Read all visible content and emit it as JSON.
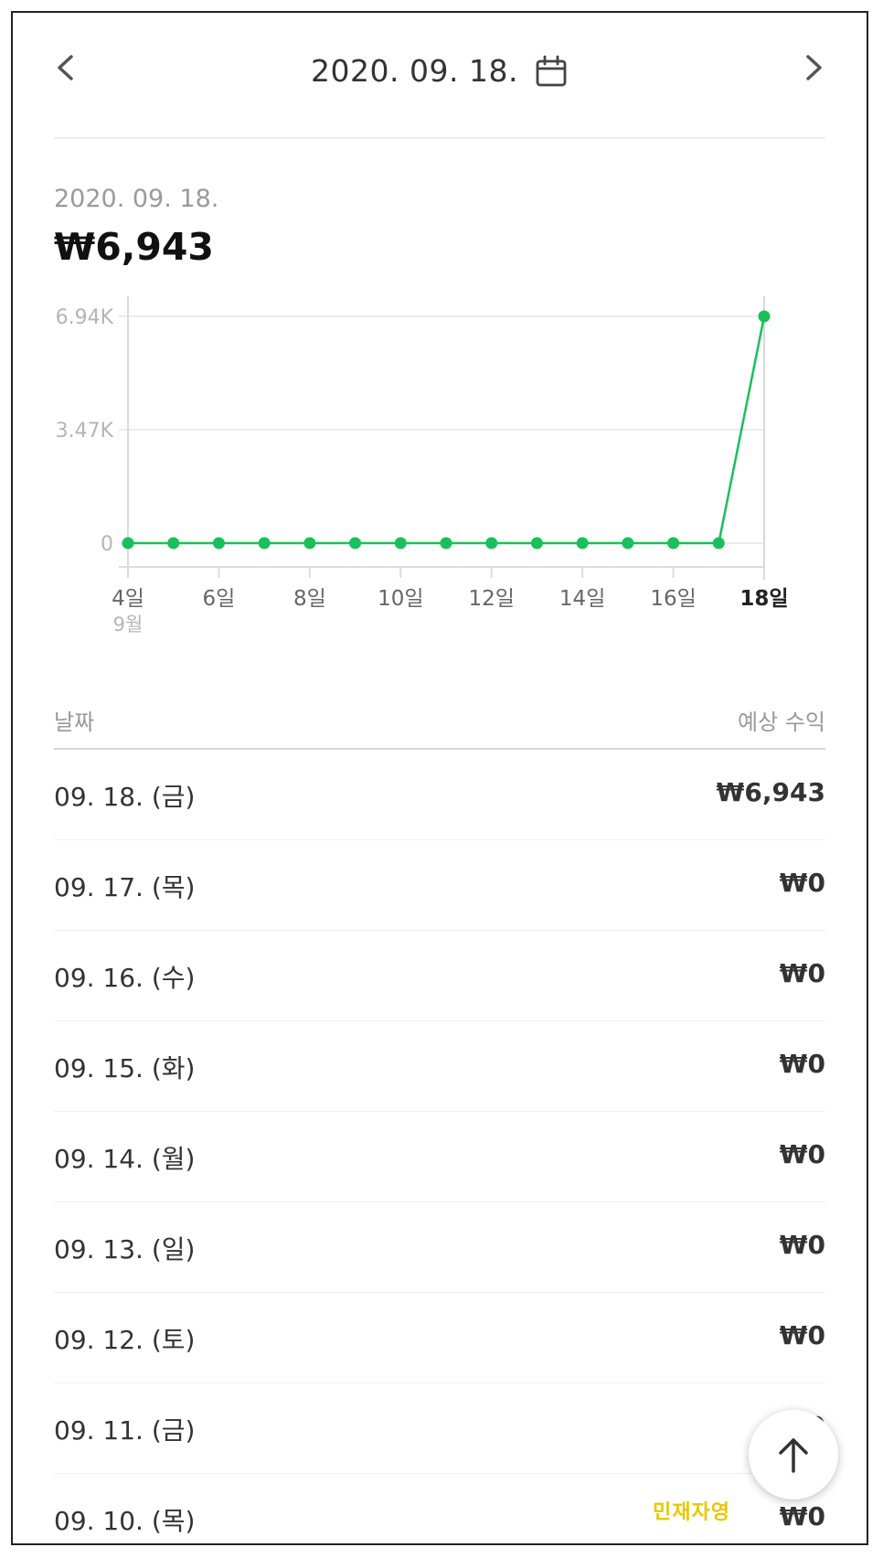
{
  "header": {
    "date": "2020. 09. 18.",
    "prev_icon": "chevron-left-icon",
    "next_icon": "chevron-right-icon",
    "calendar_icon": "calendar-icon"
  },
  "summary": {
    "date": "2020. 09. 18.",
    "amount": "₩6,943"
  },
  "chart_data": {
    "type": "line",
    "title": "",
    "xlabel": "",
    "ylabel": "",
    "x": [
      4,
      5,
      6,
      7,
      8,
      9,
      10,
      11,
      12,
      13,
      14,
      15,
      16,
      17,
      18
    ],
    "series": [
      {
        "values": [
          0,
          0,
          0,
          0,
          0,
          0,
          0,
          0,
          0,
          0,
          0,
          0,
          0,
          0,
          6943
        ]
      }
    ],
    "ylim": [
      0,
      6943
    ],
    "y_ticks": [
      "6.94K",
      "3.47K",
      "0"
    ],
    "y_tick_values": [
      6943,
      3471.5,
      0
    ],
    "x_tick_labels": [
      "4일",
      "6일",
      "8일",
      "10일",
      "12일",
      "14일",
      "16일",
      "18일"
    ],
    "x_tick_values": [
      4,
      6,
      8,
      10,
      12,
      14,
      16,
      18
    ],
    "x_month_label": "9월",
    "highlighted_x": 18,
    "grid": true,
    "line_color": "#19c05a"
  },
  "table": {
    "col_date": "날짜",
    "col_amount": "예상 수익",
    "rows": [
      {
        "date": "09. 18. (금)",
        "amount": "₩6,943"
      },
      {
        "date": "09. 17. (목)",
        "amount": "₩0"
      },
      {
        "date": "09. 16. (수)",
        "amount": "₩0"
      },
      {
        "date": "09. 15. (화)",
        "amount": "₩0"
      },
      {
        "date": "09. 14. (월)",
        "amount": "₩0"
      },
      {
        "date": "09. 13. (일)",
        "amount": "₩0"
      },
      {
        "date": "09. 12. (토)",
        "amount": "₩0"
      },
      {
        "date": "09. 11. (금)",
        "amount": "₩0"
      },
      {
        "date": "09. 10. (목)",
        "amount": "₩0"
      }
    ]
  },
  "scroll_top_icon": "arrow-up-icon",
  "watermark": "민재자영"
}
